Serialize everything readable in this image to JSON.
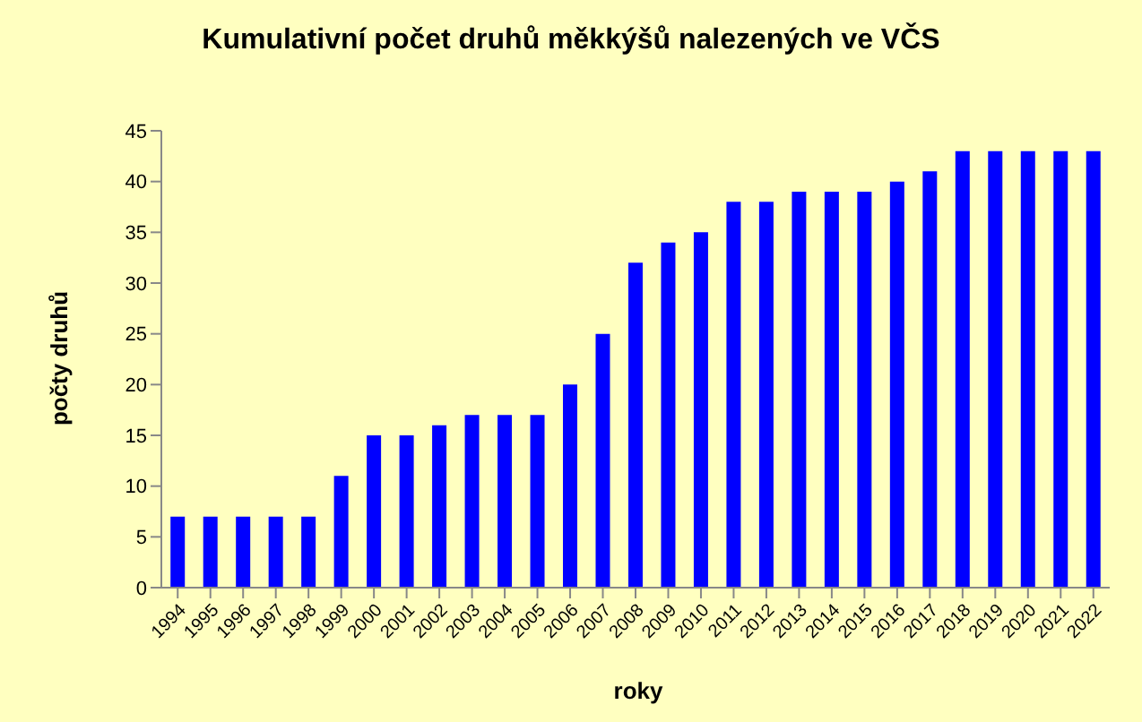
{
  "chart_data": {
    "type": "bar",
    "title": "Kumulativní počet druhů měkkýšů nalezených ve VČS",
    "xlabel": "roky",
    "ylabel": "počty druhů",
    "categories": [
      "1994",
      "1995",
      "1996",
      "1997",
      "1998",
      "1999",
      "2000",
      "2001",
      "2002",
      "2003",
      "2004",
      "2005",
      "2006",
      "2007",
      "2008",
      "2009",
      "2010",
      "2011",
      "2012",
      "2013",
      "2014",
      "2015",
      "2016",
      "2017",
      "2018",
      "2019",
      "2020",
      "2021",
      "2022"
    ],
    "values": [
      7,
      7,
      7,
      7,
      7,
      11,
      15,
      15,
      16,
      17,
      17,
      17,
      20,
      25,
      32,
      34,
      35,
      38,
      38,
      39,
      39,
      39,
      40,
      41,
      43,
      43,
      43,
      43,
      43
    ],
    "color": "#0000ff",
    "ylim": [
      0,
      45
    ],
    "yticks": [
      0,
      5,
      10,
      15,
      20,
      25,
      30,
      35,
      40,
      45
    ],
    "grid": false
  }
}
